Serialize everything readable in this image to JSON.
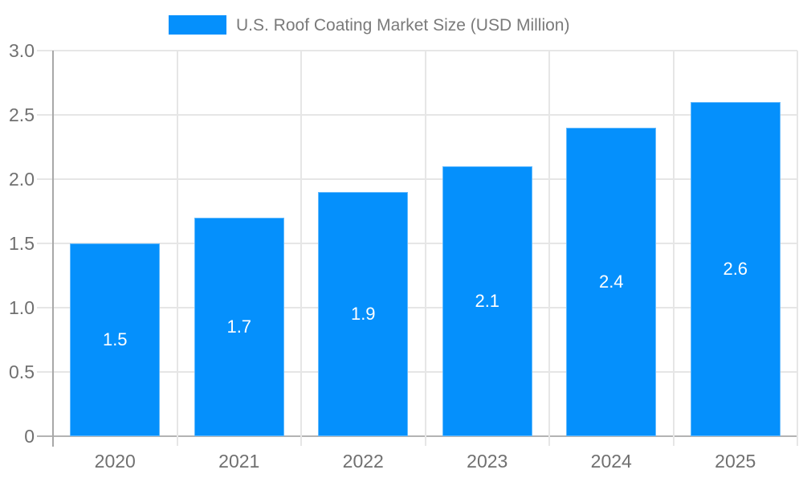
{
  "chart_data": {
    "type": "bar",
    "title": "U.S. Roof Coating Market Size (USD Million)",
    "legend": {
      "label": "U.S. Roof Coating Market Size (USD Million)",
      "position": "top"
    },
    "categories": [
      "2020",
      "2021",
      "2022",
      "2023",
      "2024",
      "2025"
    ],
    "values": [
      1.5,
      1.7,
      1.9,
      2.1,
      2.4,
      2.6
    ],
    "bar_labels": [
      "1.5",
      "1.7",
      "1.9",
      "2.1",
      "2.4",
      "2.6"
    ],
    "xlabel": "",
    "ylabel": "",
    "ylim": [
      0,
      3
    ],
    "yticks": [
      "0",
      "0.5",
      "1.0",
      "1.5",
      "2.0",
      "2.5",
      "3.0"
    ],
    "grid": "on",
    "colors": {
      "bar": "#0590fc",
      "gridline": "#e6e6e6",
      "baseline": "#b3b3b3",
      "axis_line": "#a8a8a8",
      "axis_text": "#707070",
      "legend_text": "#7a7a7a",
      "bar_label_text": "#ffffff"
    }
  }
}
